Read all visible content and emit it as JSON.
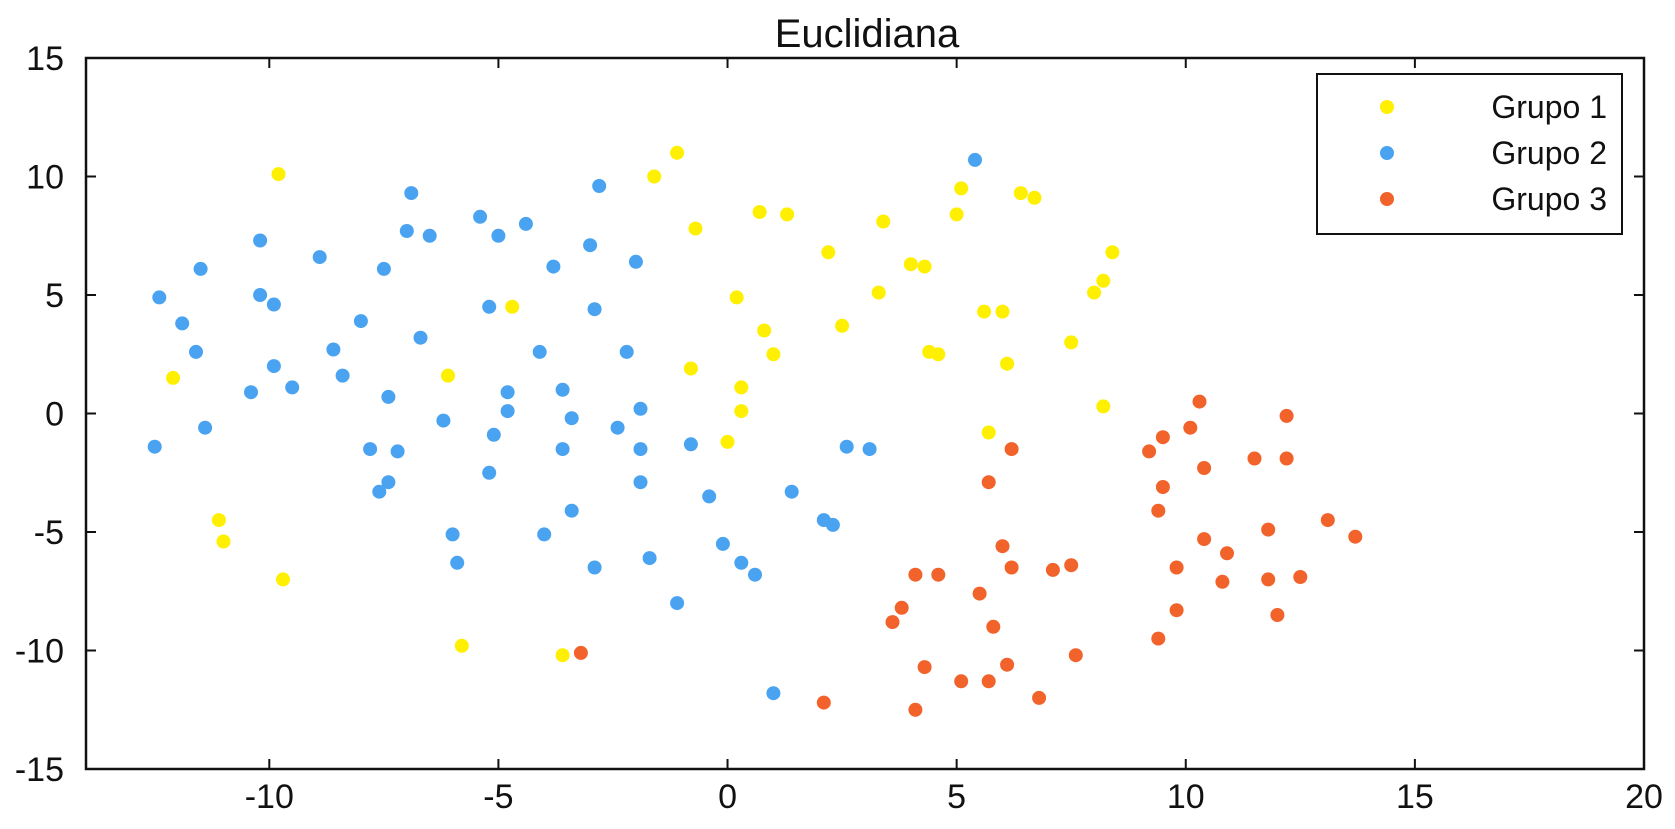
{
  "chart_data": {
    "type": "scatter",
    "title": "Euclidiana",
    "xlabel": "",
    "ylabel": "",
    "xlim": [
      -14,
      20
    ],
    "ylim": [
      -15,
      15
    ],
    "xticks": [
      -10,
      -5,
      0,
      5,
      10,
      15,
      20
    ],
    "yticks": [
      15,
      10,
      5,
      0,
      -5,
      -10,
      -15
    ],
    "grid": false,
    "legend_position": "top-right",
    "series": [
      {
        "name": "Grupo 1",
        "color": "#ffef00",
        "points": [
          [
            -9.8,
            10.1
          ],
          [
            -12.1,
            1.5
          ],
          [
            -11.1,
            -4.5
          ],
          [
            -11.0,
            -5.4
          ],
          [
            -9.7,
            -7.0
          ],
          [
            -6.1,
            1.6
          ],
          [
            -5.8,
            -9.8
          ],
          [
            -4.7,
            4.5
          ],
          [
            -3.6,
            -10.2
          ],
          [
            -1.6,
            10.0
          ],
          [
            -1.1,
            11.0
          ],
          [
            -0.7,
            7.8
          ],
          [
            -0.8,
            1.9
          ],
          [
            0.0,
            -1.2
          ],
          [
            0.2,
            4.9
          ],
          [
            0.3,
            1.1
          ],
          [
            0.3,
            0.1
          ],
          [
            0.7,
            8.5
          ],
          [
            0.8,
            3.5
          ],
          [
            1.0,
            2.5
          ],
          [
            1.3,
            8.4
          ],
          [
            2.2,
            6.8
          ],
          [
            2.5,
            3.7
          ],
          [
            3.3,
            5.1
          ],
          [
            3.4,
            8.1
          ],
          [
            4.0,
            6.3
          ],
          [
            4.3,
            6.2
          ],
          [
            4.4,
            2.6
          ],
          [
            4.6,
            2.5
          ],
          [
            5.0,
            8.4
          ],
          [
            5.1,
            9.5
          ],
          [
            5.6,
            4.3
          ],
          [
            5.7,
            -0.8
          ],
          [
            6.0,
            4.3
          ],
          [
            6.1,
            2.1
          ],
          [
            6.4,
            9.3
          ],
          [
            6.7,
            9.1
          ],
          [
            7.5,
            3.0
          ],
          [
            8.0,
            5.1
          ],
          [
            8.2,
            5.6
          ],
          [
            8.4,
            6.8
          ],
          [
            8.2,
            0.3
          ]
        ]
      },
      {
        "name": "Grupo 2",
        "color": "#4aa3f0",
        "points": [
          [
            -12.4,
            4.9
          ],
          [
            -12.5,
            -1.4
          ],
          [
            -11.9,
            3.8
          ],
          [
            -11.6,
            2.6
          ],
          [
            -11.5,
            6.1
          ],
          [
            -11.4,
            -0.6
          ],
          [
            -10.4,
            0.9
          ],
          [
            -10.2,
            7.3
          ],
          [
            -10.2,
            5.0
          ],
          [
            -9.9,
            4.6
          ],
          [
            -9.9,
            2.0
          ],
          [
            -9.5,
            1.1
          ],
          [
            -8.9,
            6.6
          ],
          [
            -8.6,
            2.7
          ],
          [
            -8.4,
            1.6
          ],
          [
            -8.0,
            3.9
          ],
          [
            -7.8,
            -1.5
          ],
          [
            -7.6,
            -3.3
          ],
          [
            -7.5,
            6.1
          ],
          [
            -7.4,
            -2.9
          ],
          [
            -7.4,
            0.7
          ],
          [
            -7.2,
            -1.6
          ],
          [
            -7.0,
            7.7
          ],
          [
            -6.9,
            9.3
          ],
          [
            -6.7,
            3.2
          ],
          [
            -6.5,
            7.5
          ],
          [
            -6.2,
            -0.3
          ],
          [
            -6.0,
            -5.1
          ],
          [
            -5.9,
            -6.3
          ],
          [
            -5.4,
            8.3
          ],
          [
            -5.2,
            4.5
          ],
          [
            -5.2,
            -2.5
          ],
          [
            -5.1,
            -0.9
          ],
          [
            -5.0,
            7.5
          ],
          [
            -4.8,
            0.9
          ],
          [
            -4.8,
            0.1
          ],
          [
            -4.4,
            8.0
          ],
          [
            -4.1,
            2.6
          ],
          [
            -4.0,
            -5.1
          ],
          [
            -3.8,
            6.2
          ],
          [
            -3.6,
            1.0
          ],
          [
            -3.6,
            -1.5
          ],
          [
            -3.4,
            -4.1
          ],
          [
            -3.4,
            -0.2
          ],
          [
            -3.0,
            7.1
          ],
          [
            -2.9,
            4.4
          ],
          [
            -2.9,
            -6.5
          ],
          [
            -2.8,
            9.6
          ],
          [
            -2.4,
            -0.6
          ],
          [
            -2.2,
            2.6
          ],
          [
            -2.0,
            6.4
          ],
          [
            -1.9,
            0.2
          ],
          [
            -1.9,
            -1.5
          ],
          [
            -1.9,
            -2.9
          ],
          [
            -1.7,
            -6.1
          ],
          [
            -1.1,
            -8.0
          ],
          [
            -0.8,
            -1.3
          ],
          [
            -0.4,
            -3.5
          ],
          [
            -0.1,
            -5.5
          ],
          [
            0.3,
            -6.3
          ],
          [
            0.6,
            -6.8
          ],
          [
            1.0,
            -11.8
          ],
          [
            1.4,
            -3.3
          ],
          [
            2.1,
            -4.5
          ],
          [
            2.3,
            -4.7
          ],
          [
            2.6,
            -1.4
          ],
          [
            3.1,
            -1.5
          ],
          [
            5.4,
            10.7
          ]
        ]
      },
      {
        "name": "Grupo 3",
        "color": "#f2622b",
        "points": [
          [
            -3.2,
            -10.1
          ],
          [
            2.1,
            -12.2
          ],
          [
            3.6,
            -8.8
          ],
          [
            3.8,
            -8.2
          ],
          [
            4.1,
            -6.8
          ],
          [
            4.1,
            -12.5
          ],
          [
            4.3,
            -10.7
          ],
          [
            4.6,
            -6.8
          ],
          [
            5.1,
            -11.3
          ],
          [
            5.5,
            -7.6
          ],
          [
            5.7,
            -2.9
          ],
          [
            5.7,
            -11.3
          ],
          [
            5.8,
            -9.0
          ],
          [
            6.0,
            -5.6
          ],
          [
            6.1,
            -10.6
          ],
          [
            6.2,
            -6.5
          ],
          [
            6.2,
            -1.5
          ],
          [
            6.8,
            -12.0
          ],
          [
            7.1,
            -6.6
          ],
          [
            7.5,
            -6.4
          ],
          [
            7.6,
            -10.2
          ],
          [
            9.2,
            -1.6
          ],
          [
            9.4,
            -9.5
          ],
          [
            9.4,
            -4.1
          ],
          [
            9.5,
            -1.0
          ],
          [
            9.5,
            -3.1
          ],
          [
            9.8,
            -6.5
          ],
          [
            9.8,
            -8.3
          ],
          [
            10.1,
            -0.6
          ],
          [
            10.3,
            0.5
          ],
          [
            10.4,
            -2.3
          ],
          [
            10.4,
            -5.3
          ],
          [
            10.8,
            -7.1
          ],
          [
            10.9,
            -5.9
          ],
          [
            11.5,
            -1.9
          ],
          [
            11.8,
            -7.0
          ],
          [
            11.8,
            -4.9
          ],
          [
            12.0,
            -8.5
          ],
          [
            12.2,
            -1.9
          ],
          [
            12.2,
            -0.1
          ],
          [
            12.5,
            -6.9
          ],
          [
            13.1,
            -4.5
          ],
          [
            13.7,
            -5.2
          ]
        ]
      }
    ]
  }
}
